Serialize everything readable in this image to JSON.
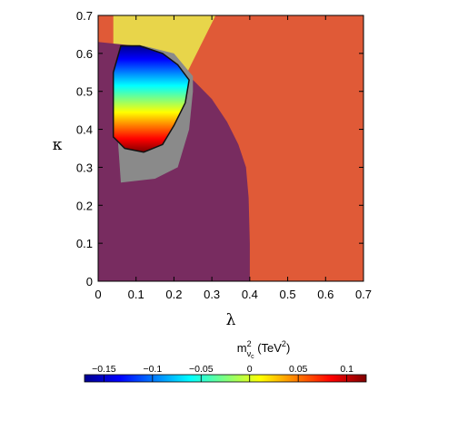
{
  "chart_data": {
    "type": "area",
    "title": "",
    "xlabel": "λ",
    "ylabel": "κ",
    "xlim": [
      0,
      0.7
    ],
    "ylim": [
      0,
      0.7
    ],
    "xticks": [
      "0",
      "0.1",
      "0.2",
      "0.3",
      "0.4",
      "0.5",
      "0.6",
      "0.7"
    ],
    "yticks": [
      "0",
      "0.1",
      "0.2",
      "0.3",
      "0.4",
      "0.5",
      "0.6",
      "0.7"
    ],
    "grid": false,
    "regions": [
      {
        "name": "orange",
        "color": "#e05a37",
        "points": [
          [
            0,
            0
          ],
          [
            0.7,
            0
          ],
          [
            0.7,
            0.7
          ],
          [
            0,
            0.7
          ]
        ]
      },
      {
        "name": "yellow",
        "color": "#e8d54a",
        "points": [
          [
            0.04,
            0.7
          ],
          [
            0.31,
            0.7
          ],
          [
            0.22,
            0.52
          ],
          [
            0.12,
            0.55
          ],
          [
            0.04,
            0.62
          ]
        ]
      },
      {
        "name": "purple",
        "color": "#782c60",
        "points": [
          [
            0,
            0
          ],
          [
            0.4,
            0
          ],
          [
            0.4,
            0.1
          ],
          [
            0.397,
            0.22
          ],
          [
            0.39,
            0.3
          ],
          [
            0.37,
            0.36
          ],
          [
            0.34,
            0.42
          ],
          [
            0.3,
            0.48
          ],
          [
            0.26,
            0.52
          ],
          [
            0.23,
            0.55
          ],
          [
            0.18,
            0.59
          ],
          [
            0.1,
            0.62
          ],
          [
            0,
            0.63
          ]
        ]
      },
      {
        "name": "grey",
        "color": "#8a8a8a",
        "points": [
          [
            0.06,
            0.26
          ],
          [
            0.15,
            0.27
          ],
          [
            0.21,
            0.3
          ],
          [
            0.24,
            0.4
          ],
          [
            0.25,
            0.5
          ],
          [
            0.25,
            0.54
          ],
          [
            0.2,
            0.6
          ],
          [
            0.12,
            0.62
          ],
          [
            0.06,
            0.62
          ],
          [
            0.04,
            0.55
          ],
          [
            0.05,
            0.4
          ]
        ]
      },
      {
        "name": "colored",
        "color": "gradient",
        "points": [
          [
            0.06,
            0.62
          ],
          [
            0.11,
            0.62
          ],
          [
            0.17,
            0.6
          ],
          [
            0.21,
            0.57
          ],
          [
            0.24,
            0.53
          ],
          [
            0.23,
            0.47
          ],
          [
            0.2,
            0.41
          ],
          [
            0.17,
            0.36
          ],
          [
            0.12,
            0.34
          ],
          [
            0.07,
            0.35
          ],
          [
            0.04,
            0.38
          ],
          [
            0.04,
            0.55
          ]
        ]
      }
    ],
    "colorbar": {
      "label": "m",
      "label_sup": "2",
      "label_sub": "ν",
      "label_sub2": "c",
      "label_units_pre": " (TeV",
      "label_units_sup": "2",
      "label_units_post": ")",
      "min": -0.17,
      "max": 0.12,
      "ticks": [
        -0.15,
        -0.1,
        -0.05,
        0,
        0.05,
        0.1
      ],
      "tick_labels": [
        "−0.15",
        "−0.1",
        "−0.05",
        "0",
        "0.05",
        "0.1"
      ],
      "colormap": [
        "#00008f",
        "#0000ff",
        "#007fff",
        "#00ffff",
        "#7fff7f",
        "#ffff00",
        "#ff7f00",
        "#ff0000",
        "#7f0000"
      ]
    }
  }
}
